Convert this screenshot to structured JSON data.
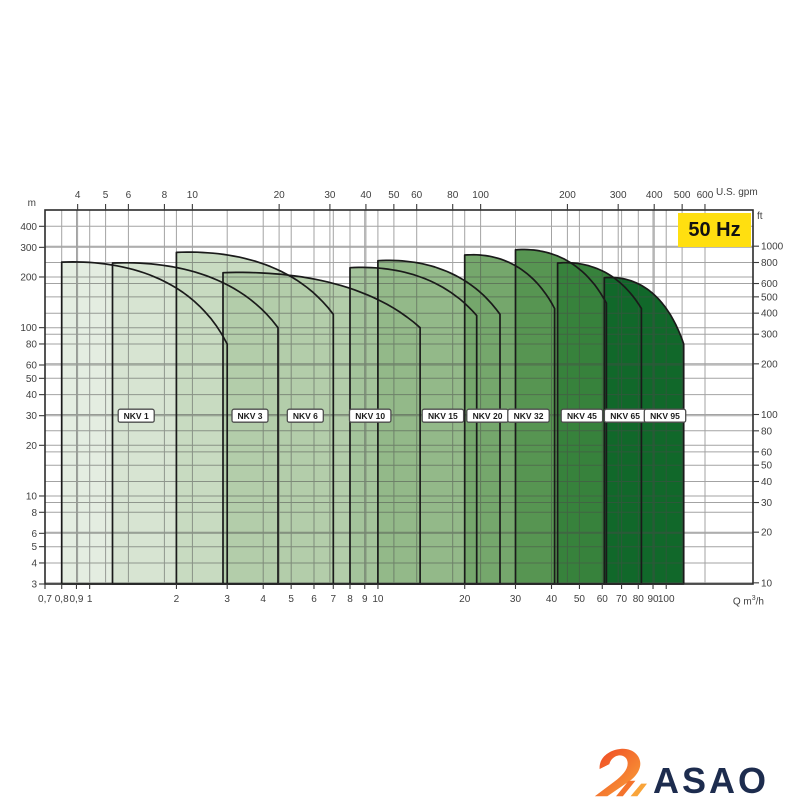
{
  "page": {
    "background": "#ffffff"
  },
  "header": {
    "frequency_badge": "50 Hz",
    "badge_color": "#FFDF10"
  },
  "axis_units": {
    "left": "m",
    "right": "ft",
    "top": "U.S. gpm",
    "bottom_prefix": "Q m",
    "bottom_sup": "3",
    "bottom_suffix": "/h"
  },
  "logo": {
    "text": "ASAO",
    "text_color": "#1D2C4E",
    "swoosh_color_start": "#EF4623",
    "swoosh_color_end": "#F9A43A"
  },
  "chart_data": {
    "type": "area",
    "title": "",
    "subtitle": "",
    "frequency_badge": "50 Hz",
    "scales": "log-log",
    "grid": true,
    "legend_position": "none (model labels inside chart)",
    "x_axis": {
      "label": "Q m³/h",
      "scale": "log",
      "range": [
        0.7,
        200
      ],
      "tick_values": [
        0.7,
        0.8,
        0.9,
        1,
        2,
        3,
        4,
        5,
        6,
        7,
        8,
        9,
        10,
        20,
        30,
        40,
        50,
        60,
        70,
        80,
        90,
        100
      ],
      "tick_labels": [
        "0,7",
        "0,8",
        "0,9",
        "1",
        "2",
        "3",
        "4",
        "5",
        "6",
        "7",
        "8",
        "9",
        "10",
        "20",
        "30",
        "40",
        "50",
        "60",
        "70",
        "80",
        "90",
        "100"
      ]
    },
    "x_axis_top": {
      "label": "U.S. gpm",
      "scale": "log",
      "tick_values": [
        4,
        5,
        6,
        8,
        10,
        20,
        30,
        40,
        50,
        60,
        80,
        100,
        200,
        300,
        400,
        500,
        600
      ]
    },
    "y_axis": {
      "label": "m",
      "scale": "log",
      "range": [
        3,
        500
      ],
      "tick_values": [
        400,
        300,
        200,
        100,
        80,
        60,
        50,
        40,
        30,
        20,
        10,
        8,
        6,
        5,
        4,
        3
      ]
    },
    "y_axis_right": {
      "label": "ft",
      "scale": "log",
      "tick_values": [
        1000,
        800,
        600,
        500,
        400,
        300,
        200,
        100,
        80,
        60,
        50,
        40,
        30,
        20,
        10
      ]
    },
    "model_label_head_m": 30,
    "envelope_stroke": "#1A1A1A",
    "series": [
      {
        "name": "NKV 1",
        "q_min_m3h": 0.8,
        "q_max_m3h": 3.0,
        "h_top_m": 245,
        "h_at_qmax_m": 80,
        "label_q": 1.45,
        "fill": "#E4EDE1"
      },
      {
        "name": "NKV 3",
        "q_min_m3h": 1.2,
        "q_max_m3h": 4.5,
        "h_top_m": 242,
        "h_at_qmax_m": 100,
        "label_q": 3.6,
        "fill": "#D7E4D2"
      },
      {
        "name": "NKV 6",
        "q_min_m3h": 2.0,
        "q_max_m3h": 7.0,
        "h_top_m": 280,
        "h_at_qmax_m": 120,
        "label_q": 5.6,
        "fill": "#C8DBC1"
      },
      {
        "name": "NKV 10",
        "q_min_m3h": 2.9,
        "q_max_m3h": 14.0,
        "h_top_m": 212,
        "h_at_qmax_m": 100,
        "label_q": 9.4,
        "fill": "#B3CDAA"
      },
      {
        "name": "NKV 15",
        "q_min_m3h": 8.0,
        "q_max_m3h": 22.0,
        "h_top_m": 227,
        "h_at_qmax_m": 118,
        "label_q": 16.8,
        "fill": "#A4C49B"
      },
      {
        "name": "NKV 20",
        "q_min_m3h": 10.0,
        "q_max_m3h": 26.5,
        "h_top_m": 250,
        "h_at_qmax_m": 120,
        "label_q": 24.0,
        "fill": "#93B989"
      },
      {
        "name": "NKV 32",
        "q_min_m3h": 20.0,
        "q_max_m3h": 41.0,
        "h_top_m": 270,
        "h_at_qmax_m": 130,
        "label_q": 33.3,
        "fill": "#75A76C"
      },
      {
        "name": "NKV 45",
        "q_min_m3h": 30.0,
        "q_max_m3h": 62.0,
        "h_top_m": 290,
        "h_at_qmax_m": 140,
        "label_q": 51.0,
        "fill": "#579552"
      },
      {
        "name": "NKV 65",
        "q_min_m3h": 42.0,
        "q_max_m3h": 82.0,
        "h_top_m": 242,
        "h_at_qmax_m": 130,
        "label_q": 72.0,
        "fill": "#37823C"
      },
      {
        "name": "NKV 95",
        "q_min_m3h": 61.0,
        "q_max_m3h": 115.0,
        "h_top_m": 198,
        "h_at_qmax_m": 80,
        "label_q": 99.0,
        "fill": "#11682A"
      }
    ]
  }
}
